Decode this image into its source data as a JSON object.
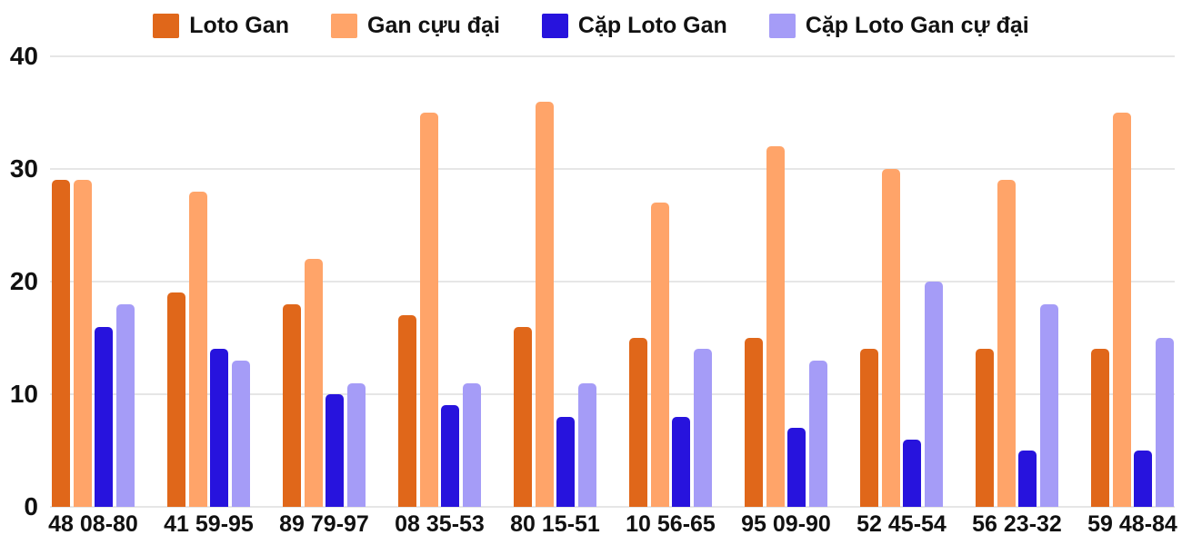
{
  "chart_data": {
    "type": "bar",
    "title": "",
    "xlabel": "",
    "ylabel": "",
    "ylim": [
      0,
      40
    ],
    "yticks": [
      0,
      10,
      20,
      30,
      40
    ],
    "grid": true,
    "legend_position": "top",
    "categories": [
      "48 08-80",
      "41 59-95",
      "89 79-97",
      "08 35-53",
      "80 15-51",
      "10 56-65",
      "95 09-90",
      "52 45-54",
      "56 23-32",
      "59 48-84"
    ],
    "series": [
      {
        "name": "Loto Gan",
        "color": "#E0671A",
        "values": [
          29,
          19,
          18,
          17,
          16,
          15,
          15,
          14,
          14,
          14
        ]
      },
      {
        "name": "Gan cựu đại",
        "color": "#FFA469",
        "values": [
          29,
          28,
          22,
          35,
          36,
          27,
          32,
          30,
          29,
          35
        ]
      },
      {
        "name": "Cặp Loto Gan",
        "color": "#2713DD",
        "values": [
          16,
          14,
          10,
          9,
          8,
          8,
          7,
          6,
          5,
          5
        ]
      },
      {
        "name": "Cặp Loto Gan cự đại",
        "color": "#A59CF7",
        "values": [
          18,
          13,
          11,
          11,
          11,
          14,
          13,
          20,
          18,
          15
        ]
      }
    ]
  },
  "colors": {
    "background": "#FFFFFF",
    "gridline": "#E6E6E6",
    "text": "#111111"
  }
}
